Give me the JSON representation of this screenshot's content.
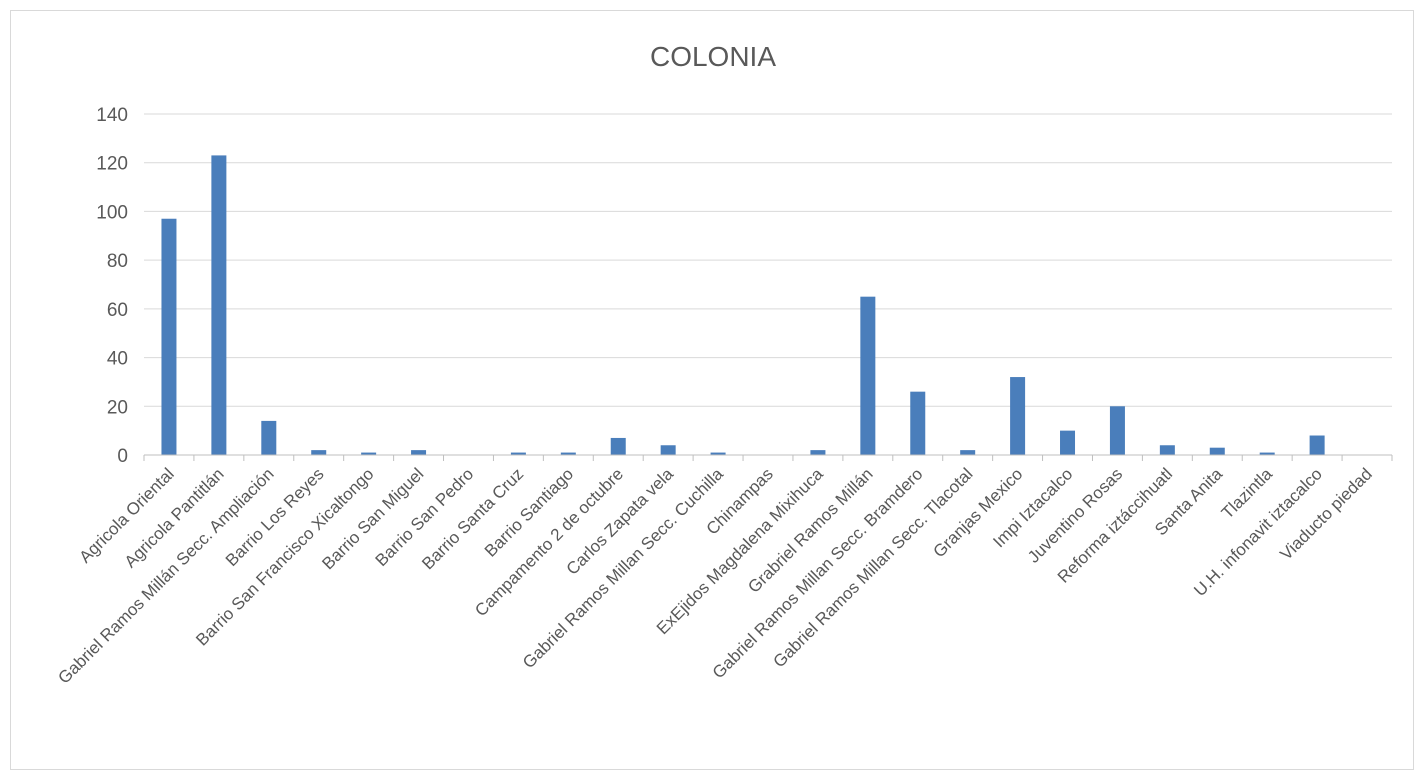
{
  "chart_data": {
    "type": "bar",
    "title": "COLONIA",
    "xlabel": "",
    "ylabel": "",
    "ylim": [
      0,
      140
    ],
    "yticks": [
      0,
      20,
      40,
      60,
      80,
      100,
      120,
      140
    ],
    "grid": true,
    "legend": "none",
    "bar_color": "#4a7ebb",
    "categories": [
      "Agricola Oriental",
      "Agricola Pantitlán",
      "Gabriel Ramos Millán Secc. Ampliación",
      "Barrio Los Reyes",
      "Barrio San Francisco Xicaltongo",
      "Barrio San Miguel",
      "Barrio San Pedro",
      "Barrio Santa Cruz",
      "Barrio Santiago",
      "Campamento 2 de octubre",
      "Carlos Zapata vela",
      "Gabriel Ramos Millan Secc. Cuchilla",
      "Chinampas",
      "ExEjidos Magdalena Mixihuca",
      "Grabriel Ramos Millán",
      "Gabriel Ramos Millan Secc. Bramdero",
      "Gabriel Ramos Millan Secc. Tlacotal",
      "Granjas Mexico",
      "Impi Iztacalco",
      "Juventino Rosas",
      "Reforma iztáccihuatl",
      "Santa Anita",
      "Tlazintla",
      "U.H. infonavit iztacalco",
      "Viaducto piedad"
    ],
    "values": [
      97,
      123,
      14,
      2,
      1,
      2,
      0,
      1,
      1,
      7,
      4,
      1,
      0,
      2,
      65,
      26,
      2,
      32,
      10,
      20,
      4,
      3,
      1,
      8,
      0
    ]
  }
}
